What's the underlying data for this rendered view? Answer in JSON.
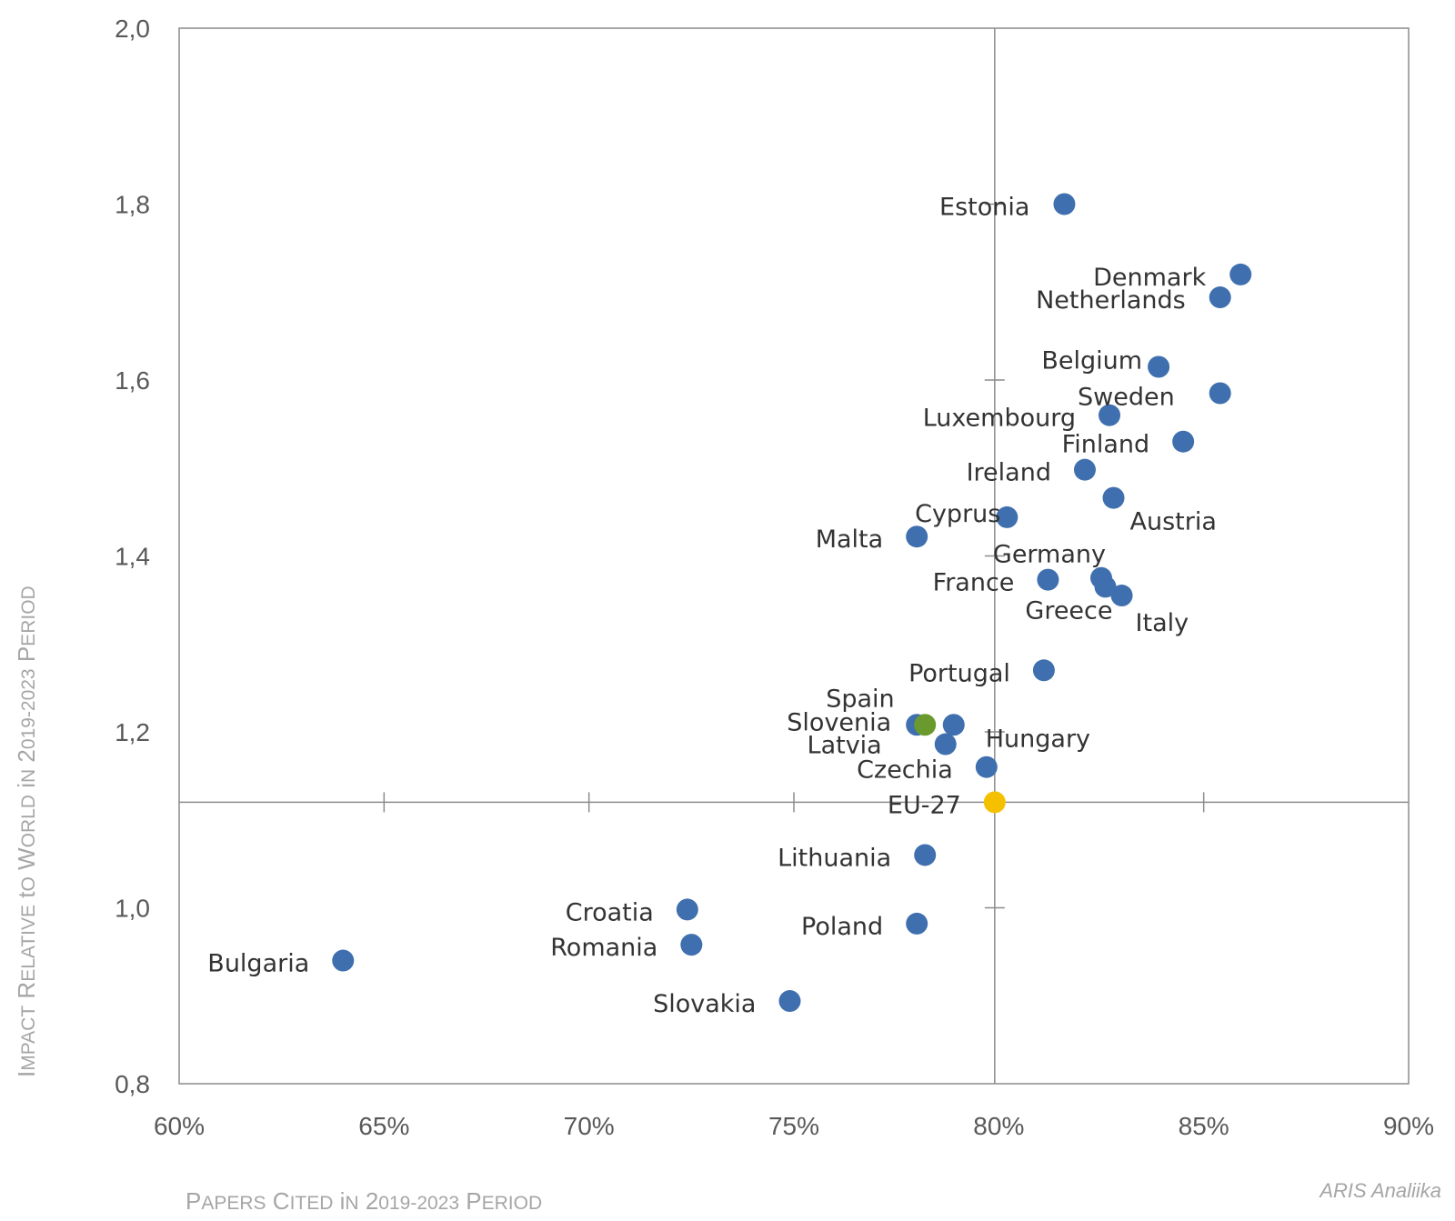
{
  "chart_data": {
    "type": "scatter",
    "title": "",
    "xlabel": "Papers Cited in 2019-2023 Period",
    "ylabel": "Impact Relative to World in 2019-2023 Period",
    "xlim": [
      0.6,
      0.9
    ],
    "ylim": [
      0.8,
      2.0
    ],
    "x_ticks": [
      "60%",
      "65%",
      "70%",
      "75%",
      "80%",
      "85%",
      "90%"
    ],
    "y_ticks": [
      "0,8",
      "1,0",
      "1,2",
      "1,4",
      "1,6",
      "1,8",
      "2,0"
    ],
    "cross_axes_at": {
      "x": 0.799,
      "y": 1.12
    },
    "grid": false,
    "legend": "none",
    "colors": {
      "default": "#3f6fae",
      "highlight": "#6a9a2e",
      "reference": "#f5c000"
    },
    "source": "ARIS Analiika",
    "points": [
      {
        "label": "Estonia",
        "x": 0.816,
        "y": 1.8,
        "style": "default"
      },
      {
        "label": "Denmark",
        "x": 0.859,
        "y": 1.72,
        "style": "default"
      },
      {
        "label": "Netherlands",
        "x": 0.854,
        "y": 1.694,
        "style": "default"
      },
      {
        "label": "Belgium",
        "x": 0.839,
        "y": 1.615,
        "style": "default"
      },
      {
        "label": "Sweden",
        "x": 0.854,
        "y": 1.585,
        "style": "default"
      },
      {
        "label": "Luxembourg",
        "x": 0.827,
        "y": 1.56,
        "style": "default"
      },
      {
        "label": "Finland",
        "x": 0.845,
        "y": 1.53,
        "style": "default"
      },
      {
        "label": "Ireland",
        "x": 0.821,
        "y": 1.498,
        "style": "default"
      },
      {
        "label": "Austria",
        "x": 0.828,
        "y": 1.466,
        "style": "default"
      },
      {
        "label": "Cyprus",
        "x": 0.802,
        "y": 1.444,
        "style": "default"
      },
      {
        "label": "Malta",
        "x": 0.78,
        "y": 1.422,
        "style": "default"
      },
      {
        "label": "Germany",
        "x": 0.825,
        "y": 1.375,
        "style": "default"
      },
      {
        "label": "France",
        "x": 0.812,
        "y": 1.373,
        "style": "default"
      },
      {
        "label": "Greece",
        "x": 0.826,
        "y": 1.365,
        "style": "default"
      },
      {
        "label": "Italy",
        "x": 0.83,
        "y": 1.355,
        "style": "default"
      },
      {
        "label": "Portugal",
        "x": 0.811,
        "y": 1.27,
        "style": "default"
      },
      {
        "label": "Spain",
        "x": 0.78,
        "y": 1.208,
        "style": "default"
      },
      {
        "label": "Slovenia",
        "x": 0.782,
        "y": 1.208,
        "style": "highlight"
      },
      {
        "label": "Hungary",
        "x": 0.789,
        "y": 1.208,
        "style": "default"
      },
      {
        "label": "Latvia",
        "x": 0.787,
        "y": 1.186,
        "style": "default"
      },
      {
        "label": "Czechia",
        "x": 0.797,
        "y": 1.16,
        "style": "default"
      },
      {
        "label": "EU-27",
        "x": 0.799,
        "y": 1.12,
        "style": "reference"
      },
      {
        "label": "Lithuania",
        "x": 0.782,
        "y": 1.06,
        "style": "default"
      },
      {
        "label": "Croatia",
        "x": 0.724,
        "y": 0.998,
        "style": "default"
      },
      {
        "label": "Poland",
        "x": 0.78,
        "y": 0.982,
        "style": "default"
      },
      {
        "label": "Romania",
        "x": 0.725,
        "y": 0.958,
        "style": "default"
      },
      {
        "label": "Bulgaria",
        "x": 0.64,
        "y": 0.94,
        "style": "default"
      },
      {
        "label": "Slovakia",
        "x": 0.749,
        "y": 0.894,
        "style": "default"
      }
    ]
  }
}
